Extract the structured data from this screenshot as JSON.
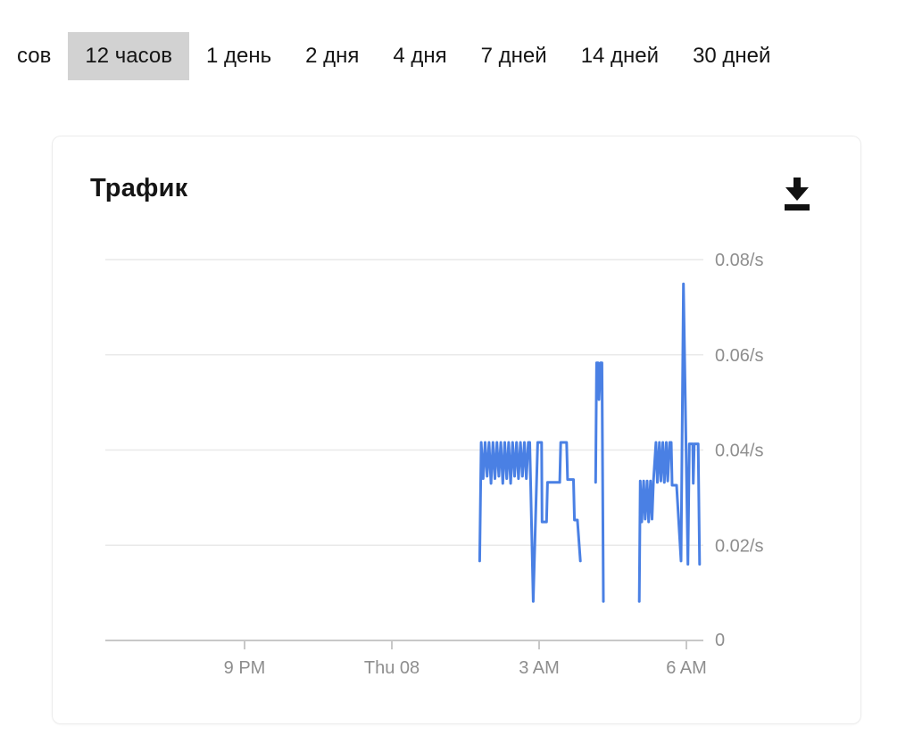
{
  "tabs": [
    {
      "label": "сов",
      "selected": false,
      "partial": true
    },
    {
      "label": "12 часов",
      "selected": true
    },
    {
      "label": "1 день",
      "selected": false
    },
    {
      "label": "2 дня",
      "selected": false
    },
    {
      "label": "4 дня",
      "selected": false
    },
    {
      "label": "7 дней",
      "selected": false
    },
    {
      "label": "14 дней",
      "selected": false
    },
    {
      "label": "30 дней",
      "selected": false
    }
  ],
  "card": {
    "title": "Трафик",
    "download_icon": "download"
  },
  "colors": {
    "line": "#4a80e4",
    "grid": "#e9e9e9",
    "axis": "#c8c8c8",
    "tick_label": "#8e8e8e",
    "selected_tab_bg": "#d2d2d2",
    "text": "#151515",
    "icon": "#111111"
  },
  "chart_data": {
    "type": "line",
    "title": "Трафик",
    "unit": "/s",
    "legend": "none",
    "grid": "horizontal",
    "y_range": [
      0,
      0.085
    ],
    "x_range_hours": [
      -5.82,
      6.35
    ],
    "y_ticks": [
      {
        "value": 0.08,
        "label": "0.08/s",
        "grid": true
      },
      {
        "value": 0.06,
        "label": "0.06/s",
        "grid": true
      },
      {
        "value": 0.04,
        "label": "0.04/s",
        "grid": true
      },
      {
        "value": 0.02,
        "label": "0.02/s",
        "grid": true
      },
      {
        "value": 0,
        "label": "0",
        "grid": false
      }
    ],
    "x_ticks": [
      {
        "hour": -3,
        "label": "9 PM"
      },
      {
        "hour": 0,
        "label": "Thu 08"
      },
      {
        "hour": 3,
        "label": "3 AM"
      },
      {
        "hour": 6,
        "label": "6 AM"
      }
    ],
    "series": [
      {
        "name": "traffic-rate",
        "color": "#4a80e4",
        "segments": [
          [
            [
              1.79,
              0.0167
            ],
            [
              1.82,
              0.0416
            ],
            [
              1.86,
              0.034
            ],
            [
              1.9,
              0.0416
            ],
            [
              1.94,
              0.0345
            ],
            [
              1.98,
              0.0416
            ],
            [
              2.02,
              0.033
            ],
            [
              2.06,
              0.0416
            ],
            [
              2.1,
              0.034
            ],
            [
              2.14,
              0.0416
            ],
            [
              2.18,
              0.0345
            ],
            [
              2.22,
              0.0416
            ],
            [
              2.26,
              0.033
            ],
            [
              2.3,
              0.0416
            ],
            [
              2.34,
              0.034
            ],
            [
              2.38,
              0.0416
            ],
            [
              2.42,
              0.033
            ],
            [
              2.46,
              0.0416
            ],
            [
              2.5,
              0.0345
            ],
            [
              2.54,
              0.0416
            ],
            [
              2.58,
              0.034
            ],
            [
              2.62,
              0.0416
            ],
            [
              2.66,
              0.0345
            ],
            [
              2.7,
              0.0416
            ],
            [
              2.74,
              0.034
            ],
            [
              2.78,
              0.0416
            ],
            [
              2.81,
              0.0416
            ],
            [
              2.88,
              0.0082
            ],
            [
              2.97,
              0.0416
            ],
            [
              3.05,
              0.0416
            ],
            [
              3.06,
              0.0249
            ],
            [
              3.15,
              0.0249
            ],
            [
              3.17,
              0.0332
            ],
            [
              3.42,
              0.0332
            ],
            [
              3.44,
              0.0416
            ],
            [
              3.56,
              0.0416
            ],
            [
              3.58,
              0.0338
            ],
            [
              3.7,
              0.0338
            ],
            [
              3.72,
              0.0253
            ],
            [
              3.78,
              0.0253
            ],
            [
              3.84,
              0.0167
            ]
          ],
          [
            [
              4.15,
              0.0332
            ],
            [
              4.17,
              0.0583
            ],
            [
              4.2,
              0.0583
            ],
            [
              4.22,
              0.0506
            ],
            [
              4.25,
              0.0583
            ],
            [
              4.28,
              0.0583
            ],
            [
              4.31,
              0.0082
            ]
          ],
          [
            [
              5.04,
              0.0082
            ],
            [
              5.06,
              0.0335
            ],
            [
              5.09,
              0.0249
            ],
            [
              5.13,
              0.0335
            ],
            [
              5.16,
              0.0255
            ],
            [
              5.2,
              0.0335
            ],
            [
              5.23,
              0.0249
            ],
            [
              5.27,
              0.0335
            ],
            [
              5.3,
              0.0255
            ],
            [
              5.33,
              0.0335
            ],
            [
              5.38,
              0.0416
            ],
            [
              5.41,
              0.0332
            ],
            [
              5.45,
              0.0416
            ],
            [
              5.48,
              0.0335
            ],
            [
              5.52,
              0.0416
            ],
            [
              5.55,
              0.0332
            ],
            [
              5.59,
              0.0416
            ],
            [
              5.62,
              0.0335
            ],
            [
              5.66,
              0.0416
            ],
            [
              5.69,
              0.0416
            ],
            [
              5.71,
              0.0326
            ],
            [
              5.8,
              0.0326
            ],
            [
              5.89,
              0.0167
            ],
            [
              5.94,
              0.0749
            ],
            [
              6.03,
              0.016
            ],
            [
              6.06,
              0.0413
            ],
            [
              6.13,
              0.0413
            ],
            [
              6.14,
              0.033
            ],
            [
              6.16,
              0.0413
            ],
            [
              6.24,
              0.0413
            ],
            [
              6.27,
              0.016
            ]
          ]
        ]
      }
    ]
  }
}
